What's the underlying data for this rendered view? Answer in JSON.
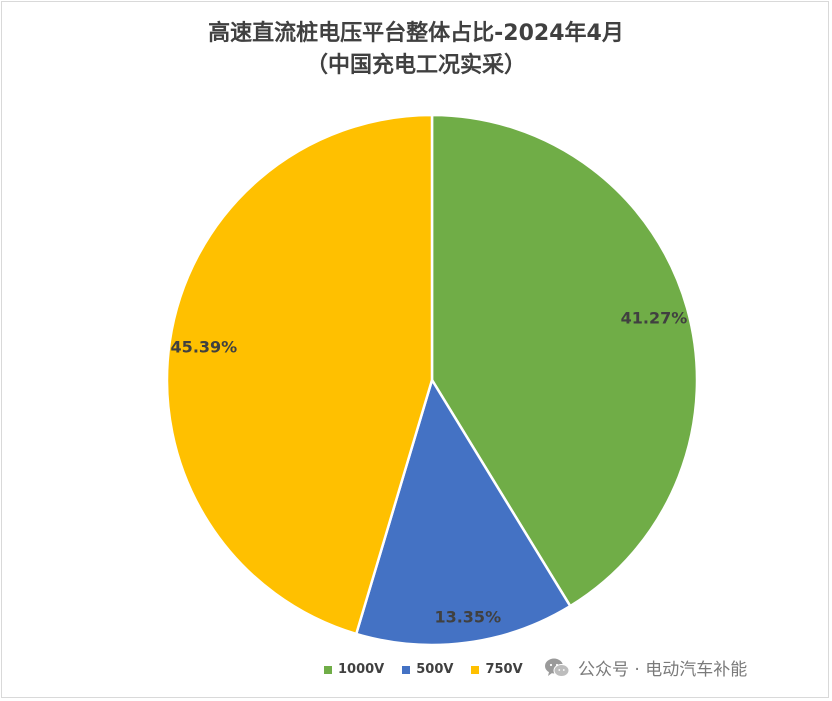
{
  "chart_data": {
    "type": "pie",
    "title_line1": "高速直流桩电压平台整体占比-2024年4月",
    "title_line2": "（中国充电工况实采）",
    "slices": [
      {
        "name": "1000V",
        "value": 41.27,
        "label": "41.27%",
        "color": "#70AD47"
      },
      {
        "name": "500V",
        "value": 13.35,
        "label": "13.35%",
        "color": "#4472C4"
      },
      {
        "name": "750V",
        "value": 45.39,
        "label": "45.39%",
        "color": "#FFC000"
      }
    ],
    "legend_position": "bottom"
  },
  "legend": {
    "items": [
      {
        "label": "1000V",
        "color": "#70AD47"
      },
      {
        "label": "500V",
        "color": "#4472C4"
      },
      {
        "label": "750V",
        "color": "#FFC000"
      }
    ]
  },
  "watermark": {
    "text": "公众号 · 电动汽车补能",
    "icon": "wechat-icon"
  }
}
